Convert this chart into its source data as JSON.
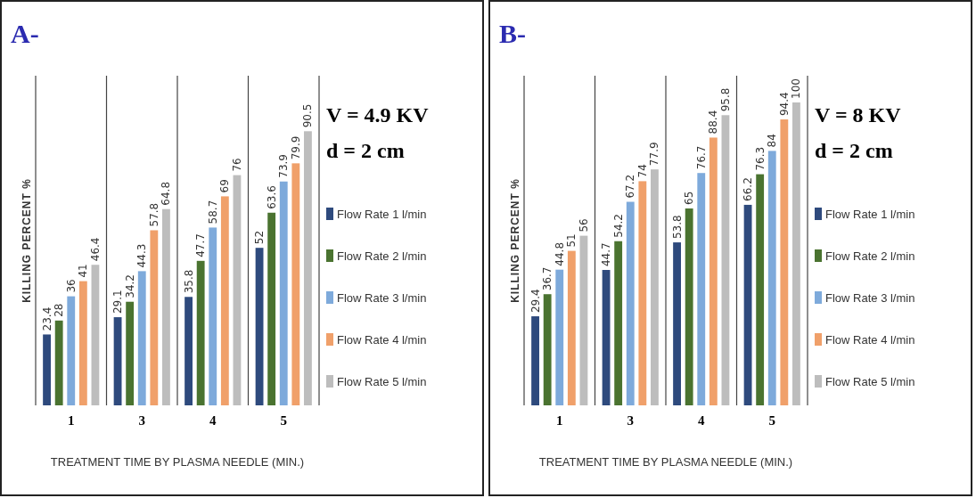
{
  "chart_data": [
    {
      "type": "bar",
      "title": "A-",
      "xlabel": "TREATMENT TIME BY PLASMA NEEDLE (MIN.)",
      "ylabel": "KILLING PERCENT %",
      "annotations": [
        "V = 4.9 KV",
        "d = 2 cm"
      ],
      "categories": [
        "1",
        "3",
        "4",
        "5"
      ],
      "series": [
        {
          "name": "Flow Rate 1 l/min",
          "color": "#2e4a7d",
          "values": [
            23.4,
            29.1,
            35.8,
            52
          ]
        },
        {
          "name": "Flow Rate 2 l/min",
          "color": "#4a7330",
          "values": [
            28,
            34.2,
            47.7,
            63.6
          ]
        },
        {
          "name": "Flow Rate 3 l/min",
          "color": "#7eaadb",
          "values": [
            36,
            44.3,
            58.7,
            73.9
          ]
        },
        {
          "name": "Flow Rate 4 l/min",
          "color": "#f0a06a",
          "values": [
            41,
            57.8,
            69,
            79.9
          ]
        },
        {
          "name": "Flow Rate 5 l/min",
          "color": "#bdbdbd",
          "values": [
            46.4,
            64.8,
            76,
            90.5
          ]
        }
      ],
      "data_labels": true,
      "legend": "right",
      "grid": "x"
    },
    {
      "type": "bar",
      "title": "B-",
      "xlabel": "TREATMENT TIME BY PLASMA NEEDLE (MIN.)",
      "ylabel": "KILLING PERCENT %",
      "annotations": [
        "V = 8 KV",
        "d = 2 cm"
      ],
      "categories": [
        "1",
        "3",
        "4",
        "5"
      ],
      "series": [
        {
          "name": "Flow Rate 1 l/min",
          "color": "#2e4a7d",
          "values": [
            29.4,
            44.7,
            53.8,
            66.2
          ]
        },
        {
          "name": "Flow Rate 2 l/min",
          "color": "#4a7330",
          "values": [
            36.7,
            54.2,
            65,
            76.3
          ]
        },
        {
          "name": "Flow Rate 3 l/min",
          "color": "#7eaadb",
          "values": [
            44.8,
            67.2,
            76.7,
            84
          ]
        },
        {
          "name": "Flow Rate 4 l/min",
          "color": "#f0a06a",
          "values": [
            51,
            74,
            88.4,
            94.4
          ]
        },
        {
          "name": "Flow Rate 5 l/min",
          "color": "#bdbdbd",
          "values": [
            56,
            77.9,
            95.8,
            100
          ]
        }
      ],
      "data_labels": true,
      "legend": "right",
      "grid": "x"
    }
  ]
}
